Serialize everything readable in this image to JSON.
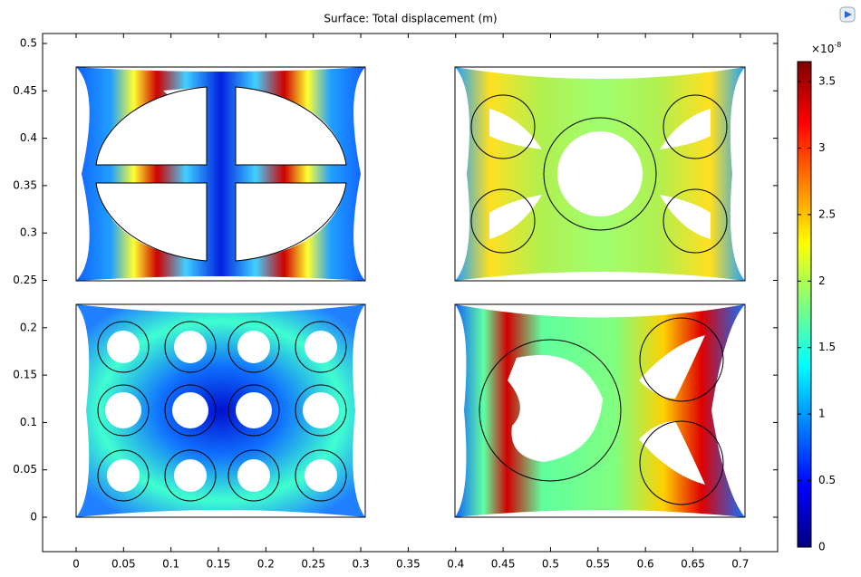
{
  "chart_data": {
    "type": "surface",
    "title": "Surface: Total displacement (m)",
    "xlim": [
      -0.0353,
      0.7393
    ],
    "ylim": [
      -0.0363,
      0.5105
    ],
    "xticks": [
      0,
      0.05,
      0.1,
      0.15,
      0.2,
      0.25,
      0.3,
      0.35,
      0.4,
      0.45,
      0.5,
      0.55,
      0.6,
      0.65,
      0.7
    ],
    "yticks": [
      0,
      0.05,
      0.1,
      0.15,
      0.2,
      0.25,
      0.3,
      0.35,
      0.4,
      0.45,
      0.5
    ],
    "colorbar": {
      "lim": [
        0,
        3.65
      ],
      "ticks": [
        0,
        0.5,
        1,
        1.5,
        2,
        2.5,
        3,
        3.5
      ],
      "multiplier": "×10",
      "exponent": "-8",
      "colormap": [
        "#00007f",
        "#0000ff",
        "#007fff",
        "#00ffff",
        "#7fff7f",
        "#ffff00",
        "#ff7f00",
        "#ff0000",
        "#7f0000"
      ]
    }
  }
}
